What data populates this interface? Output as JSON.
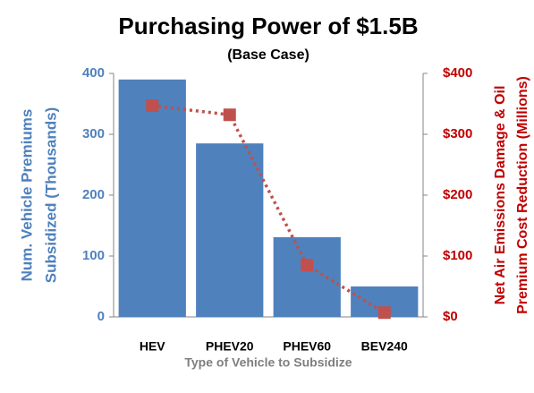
{
  "chart_data": {
    "type": "bar",
    "title": "Purchasing Power of $1.5B",
    "subtitle": "(Base Case)",
    "x_label": "Type of Vehicle to Subsidize",
    "y_label": [
      "Num. Vehicle Premiums",
      "Subsidized (Thousands)"
    ],
    "y2_label": [
      "Net Air Emissions Damage & Oil",
      "Premium Cost Reduction (Millions)"
    ],
    "categories": [
      "HEV",
      "PHEV20",
      "PHEV60",
      "BEV240"
    ],
    "series": [
      {
        "type": "bar",
        "color": "#4f81bd",
        "values": [
          390,
          285,
          131,
          50
        ]
      },
      {
        "type": "line",
        "axis": "y2",
        "color": "#c0504d",
        "values": [
          347,
          332,
          85,
          7
        ]
      }
    ],
    "ylim": [
      0,
      400
    ],
    "yticks": [
      0,
      100,
      200,
      300,
      400
    ],
    "y2lim": [
      0,
      400
    ],
    "y2ticks": [
      {
        "value": 0,
        "label": "$0"
      },
      {
        "value": 100,
        "label": "$100"
      },
      {
        "value": 200,
        "label": "$200"
      },
      {
        "value": 300,
        "label": "$300"
      },
      {
        "value": 400,
        "label": "$400"
      }
    ],
    "y_color": "#4f81bd",
    "y2_color": "#c00000"
  }
}
